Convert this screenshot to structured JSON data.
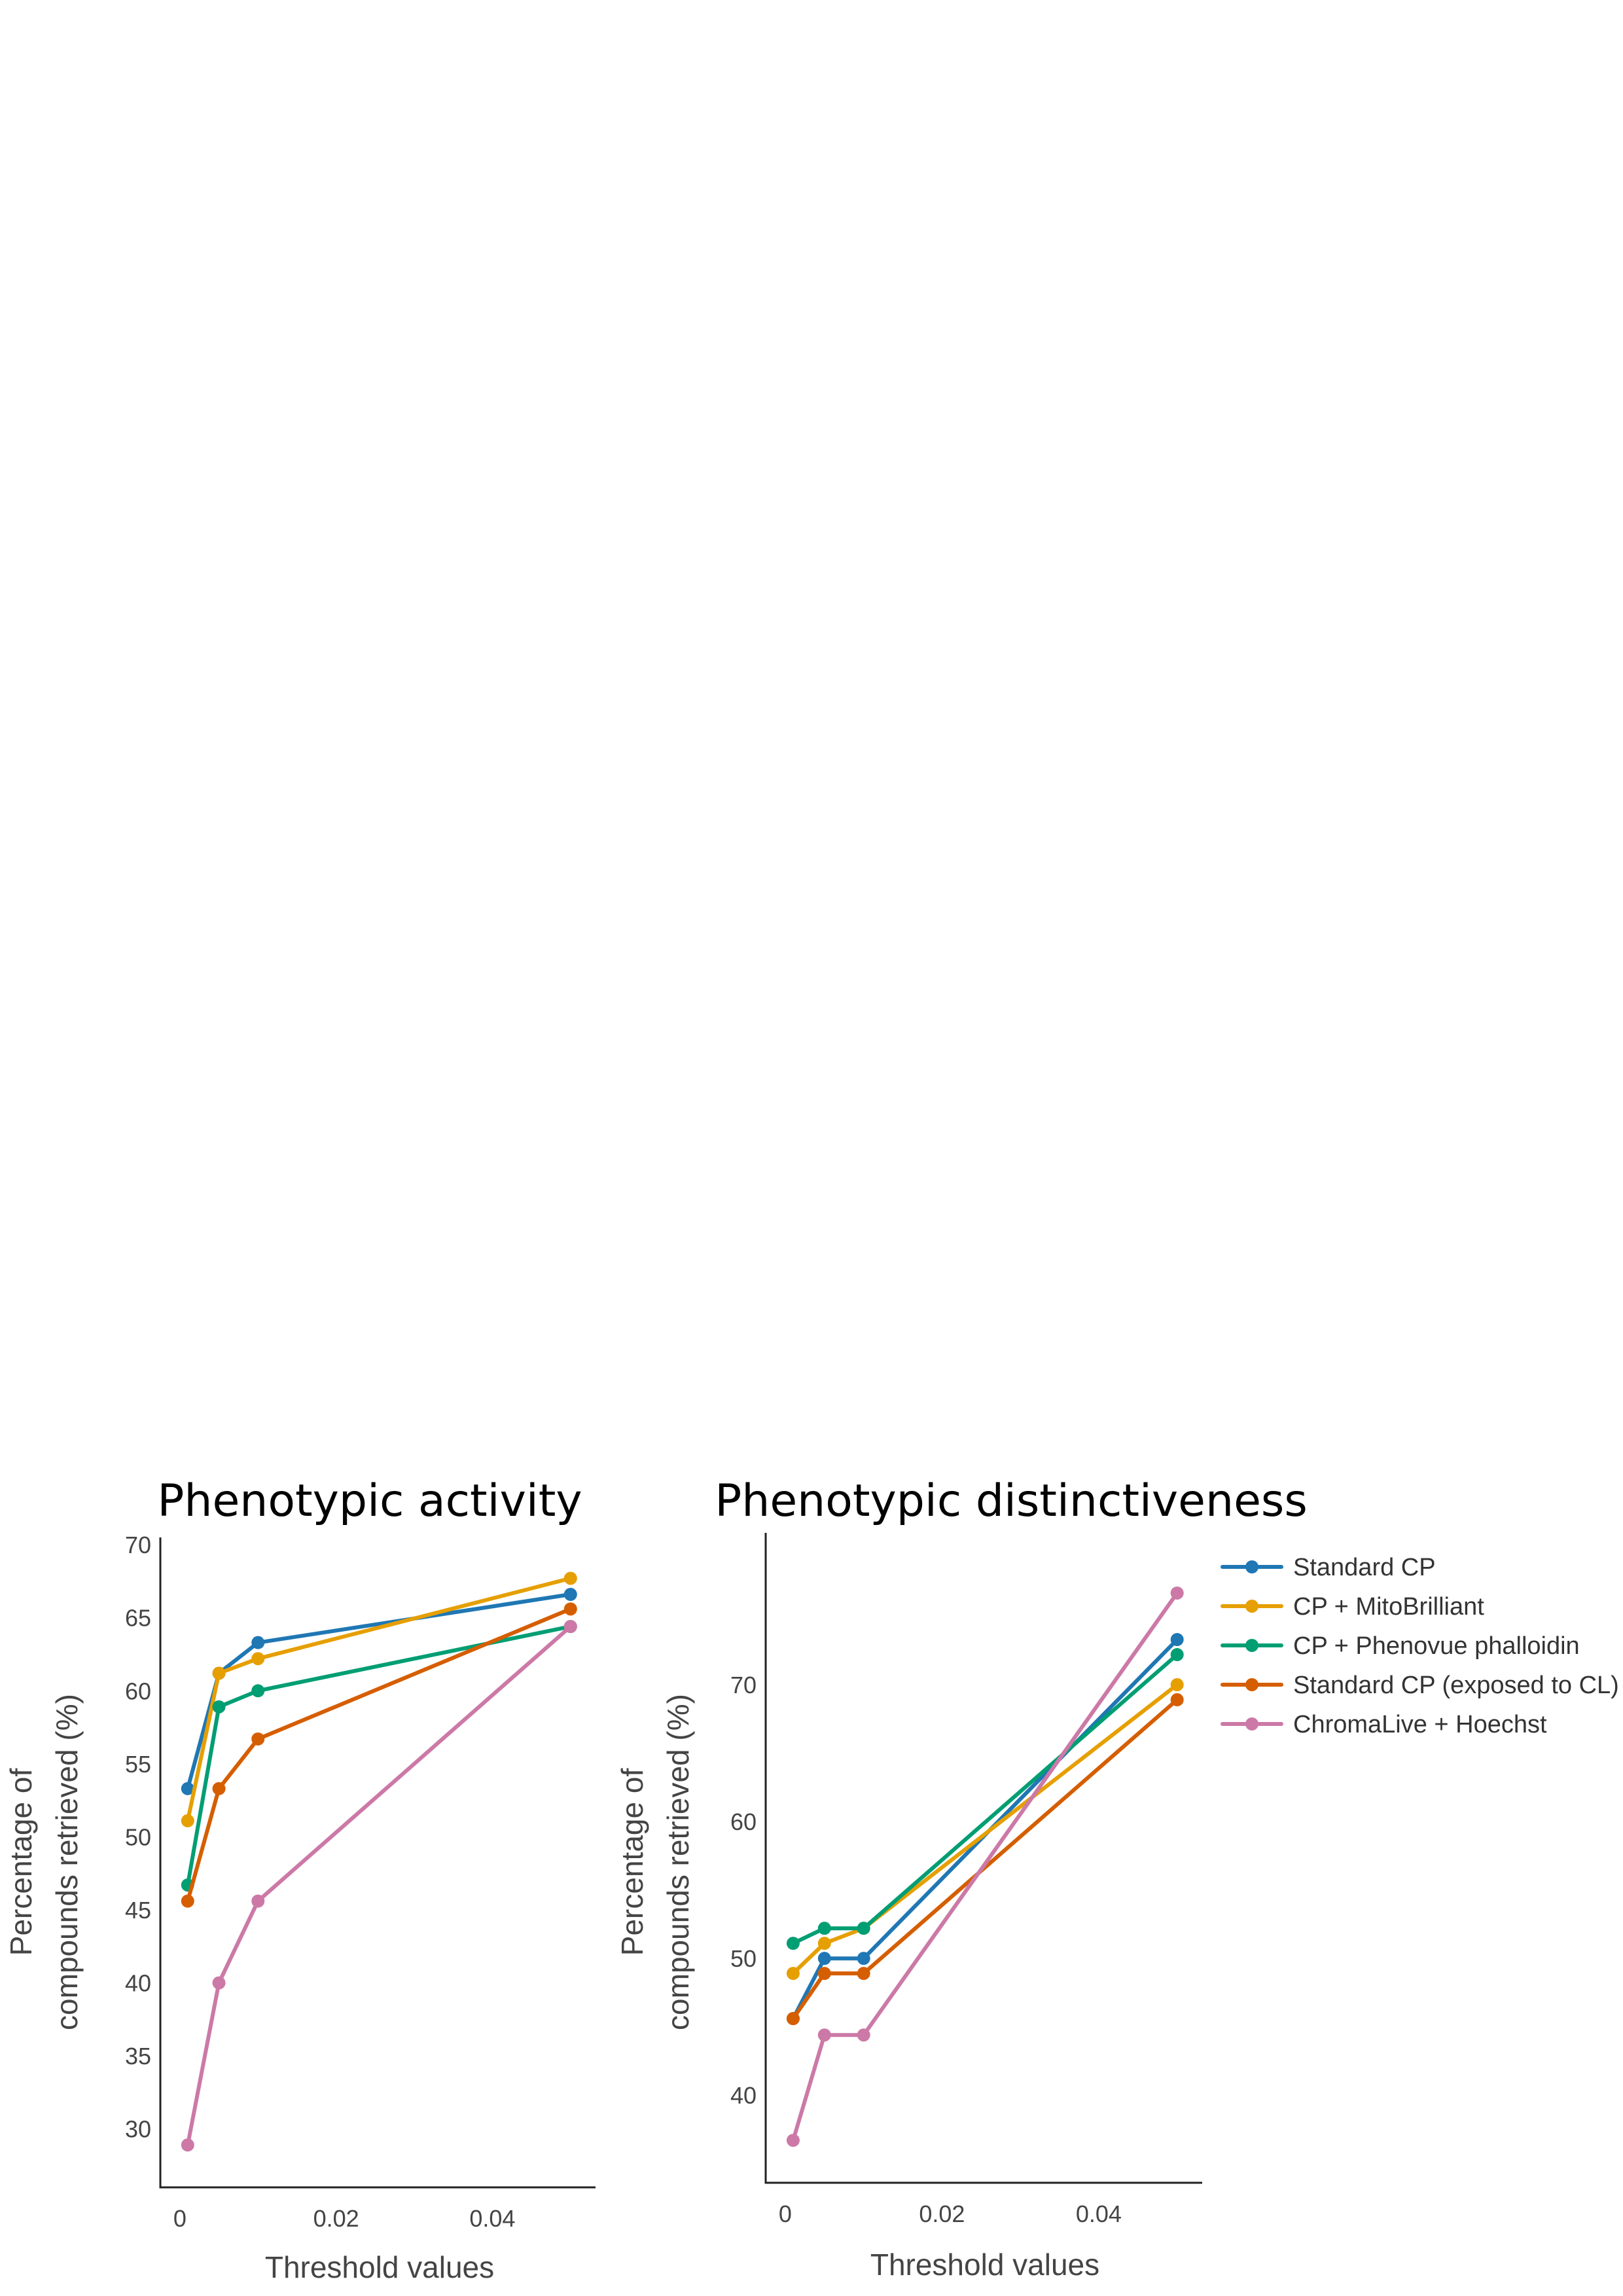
{
  "chart_data": [
    {
      "type": "line",
      "title": "Phenotypic activity",
      "xlabel": "Threshold values",
      "ylabel_lines": [
        "Percentage of",
        "compounds retrieved (%)"
      ],
      "x": [
        0.001,
        0.005,
        0.01,
        0.05
      ],
      "xticks": [
        0,
        0.02,
        0.04
      ],
      "xtick_labels": [
        "0",
        "0.02",
        "0.04"
      ],
      "yticks": [
        30,
        35,
        40,
        45,
        50,
        55,
        60,
        65,
        70
      ],
      "ytick_labels": [
        "30",
        "35",
        "40",
        "45",
        "50",
        "55",
        "60",
        "65",
        "70"
      ],
      "xlim": [
        -0.0025,
        0.0532
      ],
      "ylim": [
        26,
        70.5
      ],
      "grid": false,
      "series": [
        {
          "name": "Standard CP",
          "color": "#1f77b4",
          "values": [
            53.3,
            61.2,
            63.3,
            66.6
          ]
        },
        {
          "name": "CP + MitoBrilliant",
          "color": "#e69f00",
          "values": [
            51.1,
            61.2,
            62.2,
            67.7
          ]
        },
        {
          "name": "CP + Phenovue phalloidin",
          "color": "#009e73",
          "values": [
            46.7,
            58.9,
            60.0,
            64.4
          ]
        },
        {
          "name": "Standard CP (exposed to CL)",
          "color": "#d55e00",
          "values": [
            45.6,
            53.3,
            56.7,
            65.6
          ]
        },
        {
          "name": "ChromaLive + Hoechst",
          "color": "#cc79a7",
          "values": [
            28.9,
            40.0,
            45.6,
            64.4
          ]
        }
      ]
    },
    {
      "type": "line",
      "title": "Phenotypic distinctiveness",
      "xlabel": "Threshold values",
      "ylabel_lines": [
        "Percentage of",
        "compounds retrieved (%)"
      ],
      "x": [
        0.001,
        0.005,
        0.01,
        0.05
      ],
      "xticks": [
        0,
        0.02,
        0.04
      ],
      "xtick_labels": [
        "0",
        "0.02",
        "0.04"
      ],
      "yticks": [
        40,
        50,
        60,
        70
      ],
      "ytick_labels": [
        "40",
        "50",
        "60",
        "70"
      ],
      "xlim": [
        -0.0025,
        0.0532
      ],
      "ylim": [
        33.6,
        81.1
      ],
      "grid": false,
      "legend_position": "right",
      "series": [
        {
          "name": "Standard CP",
          "color": "#1f77b4",
          "values": [
            45.6,
            50.0,
            50.0,
            73.3
          ]
        },
        {
          "name": "CP + MitoBrilliant",
          "color": "#e69f00",
          "values": [
            48.9,
            51.1,
            52.2,
            70.0
          ]
        },
        {
          "name": "CP + Phenovue phalloidin",
          "color": "#009e73",
          "values": [
            51.1,
            52.2,
            52.2,
            72.2
          ]
        },
        {
          "name": "Standard CP (exposed to CL)",
          "color": "#d55e00",
          "values": [
            45.6,
            48.9,
            48.9,
            68.9
          ]
        },
        {
          "name": "ChromaLive + Hoechst",
          "color": "#cc79a7",
          "values": [
            36.7,
            44.4,
            44.4,
            76.7
          ]
        }
      ]
    }
  ]
}
